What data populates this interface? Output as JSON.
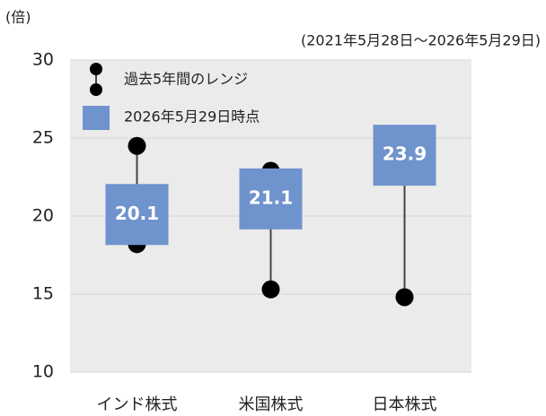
{
  "chart_data": {
    "type": "range",
    "y_label": "(倍)",
    "subtitle": "(2021年5月28日～2026年5月29日)",
    "categories": [
      "インド株式",
      "米国株式",
      "日本株式"
    ],
    "series": [
      {
        "name": "過去5年間のレンジ",
        "color": "#000000",
        "high": [
          24.5,
          22.9,
          23.9
        ],
        "low": [
          18.2,
          15.3,
          14.8
        ]
      },
      {
        "name": "2026年5月29日時点",
        "color": "#6f93cc",
        "values": [
          20.1,
          21.1,
          23.9
        ]
      }
    ],
    "ylim": [
      10,
      30
    ],
    "yticks": [
      10,
      15,
      20,
      25,
      30
    ],
    "grid": true,
    "legend": "top-left"
  }
}
